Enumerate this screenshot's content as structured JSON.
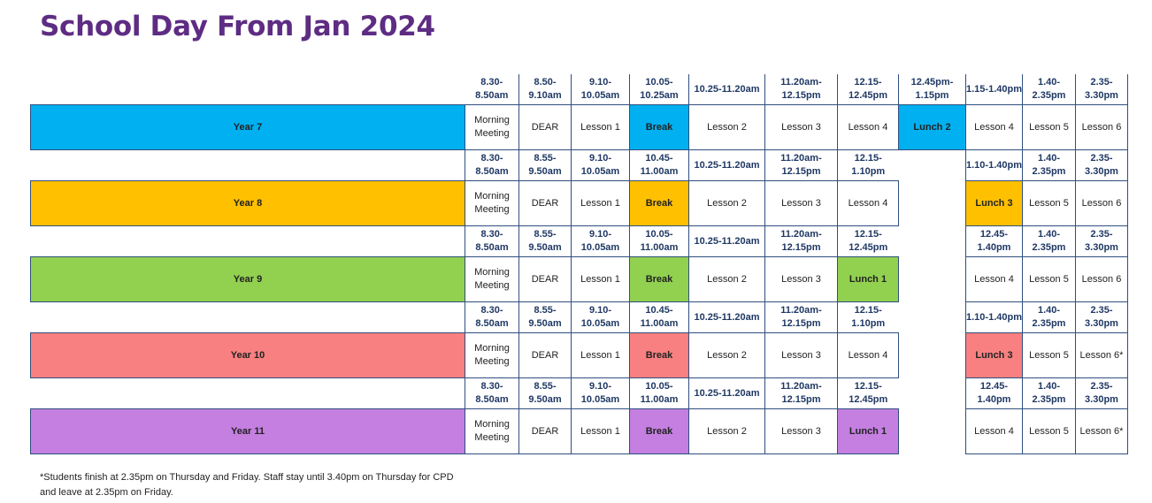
{
  "title": "School Day From Jan 2024",
  "colors": {
    "title": "#5e2c83",
    "year7": "#00b0f0",
    "year8": "#ffc000",
    "year9": "#92d050",
    "year10": "#f88080",
    "year11": "#c47fe0",
    "times_text": "#1f3864"
  },
  "year7": {
    "times": [
      "8.30-8.50am",
      "8.50-9.10am",
      "9.10-10.05am",
      "10.05-10.25am",
      "10.25-11.20am",
      "11.20am-12.15pm",
      "12.15-12.45pm",
      "12.45pm-1.15pm",
      "1.15-1.40pm",
      "1.40-2.35pm",
      "2.35-3.30pm"
    ],
    "label": "Year 7",
    "activities": [
      "Morning Meeting",
      "DEAR",
      "Lesson 1",
      "Break",
      "Lesson 2",
      "Lesson 3",
      "Lesson 4",
      "Lunch 2",
      "Lesson 4",
      "Lesson 5",
      "Lesson 6"
    ]
  },
  "year8": {
    "times": [
      "8.30-8.50am",
      "8.55-9.50am",
      "9.10-10.05am",
      "10.45-11.00am",
      "10.25-11.20am",
      "11.20am-12.15pm",
      "12.15-1.10pm",
      "",
      "1.10-1.40pm",
      "1.40-2.35pm",
      "2.35-3.30pm"
    ],
    "label": "Year 8",
    "activities": [
      "Morning Meeting",
      "DEAR",
      "Lesson 1",
      "Break",
      "Lesson 2",
      "Lesson 3",
      "Lesson 4",
      "",
      "Lunch 3",
      "Lesson 5",
      "Lesson 6"
    ]
  },
  "year9": {
    "times": [
      "8.30-8.50am",
      "8.55-9.50am",
      "9.10-10.05am",
      "10.05-11.00am",
      "10.25-11.20am",
      "11.20am-12.15pm",
      "12.15-12.45pm",
      "",
      "12.45-1.40pm",
      "1.40-2.35pm",
      "2.35-3.30pm"
    ],
    "label": "Year 9",
    "activities": [
      "Morning Meeting",
      "DEAR",
      "Lesson 1",
      "Break",
      "Lesson 2",
      "Lesson 3",
      "Lunch 1",
      "",
      "Lesson 4",
      "Lesson 5",
      "Lesson 6"
    ]
  },
  "year10": {
    "times": [
      "8.30-8.50am",
      "8.55-9.50am",
      "9.10-10.05am",
      "10.45-11.00am",
      "10.25-11.20am",
      "11.20am-12.15pm",
      "12.15-1.10pm",
      "",
      "1.10-1.40pm",
      "1.40-2.35pm",
      "2.35-3.30pm"
    ],
    "label": "Year 10",
    "activities": [
      "Morning Meeting",
      "DEAR",
      "Lesson 1",
      "Break",
      "Lesson 2",
      "Lesson 3",
      "Lesson 4",
      "",
      "Lunch 3",
      "Lesson 5",
      "Lesson 6*"
    ]
  },
  "year11": {
    "times": [
      "8.30-8.50am",
      "8.55-9.50am",
      "9.10-10.05am",
      "10.05-11.00am",
      "10.25-11.20am",
      "11.20am-12.15pm",
      "12.15-12.45pm",
      "",
      "12.45-1.40pm",
      "1.40-2.35pm",
      "2.35-3.30pm"
    ],
    "label": "Year 11",
    "activities": [
      "Morning Meeting",
      "DEAR",
      "Lesson 1",
      "Break",
      "Lesson 2",
      "Lesson 3",
      "Lunch 1",
      "",
      "Lesson 4",
      "Lesson 5",
      "Lesson 6*"
    ]
  },
  "footnote": "*Students finish at 2.35pm on Thursday and Friday. Staff stay until 3.40pm on Thursday for CPD and leave at 2.35pm on Friday."
}
